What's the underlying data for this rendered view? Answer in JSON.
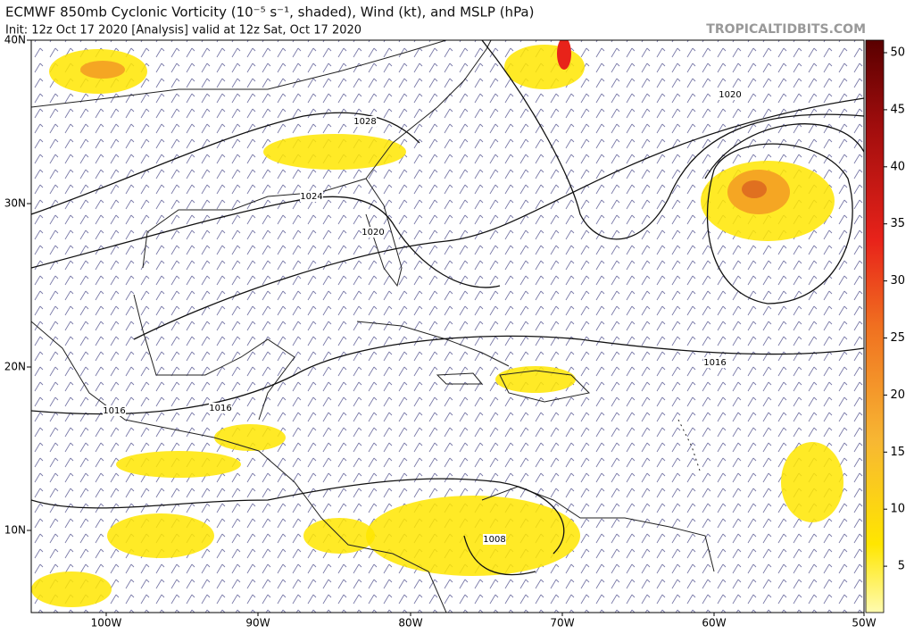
{
  "header": {
    "title": "ECMWF 850mb Cyclonic Vorticity (10⁻⁵ s⁻¹, shaded), Wind (kt), and MSLP (hPa)",
    "subtitle": "Init: 12z Oct 17 2020   [Analysis]   valid at 12z Sat, Oct 17 2020",
    "source": "TROPICALTIDBITS.COM"
  },
  "map": {
    "lat_labels": [
      "40N",
      "30N",
      "20N",
      "10N"
    ],
    "lon_labels": [
      "100W",
      "90W",
      "80W",
      "70W",
      "60W",
      "50W"
    ],
    "isobar_labels": [
      "1020",
      "1028",
      "1024",
      "1020",
      "1016",
      "1016",
      "1016",
      "1008"
    ]
  },
  "colorbar": {
    "ticks": [
      50,
      45,
      40,
      35,
      30,
      25,
      20,
      15,
      10,
      5
    ]
  }
}
